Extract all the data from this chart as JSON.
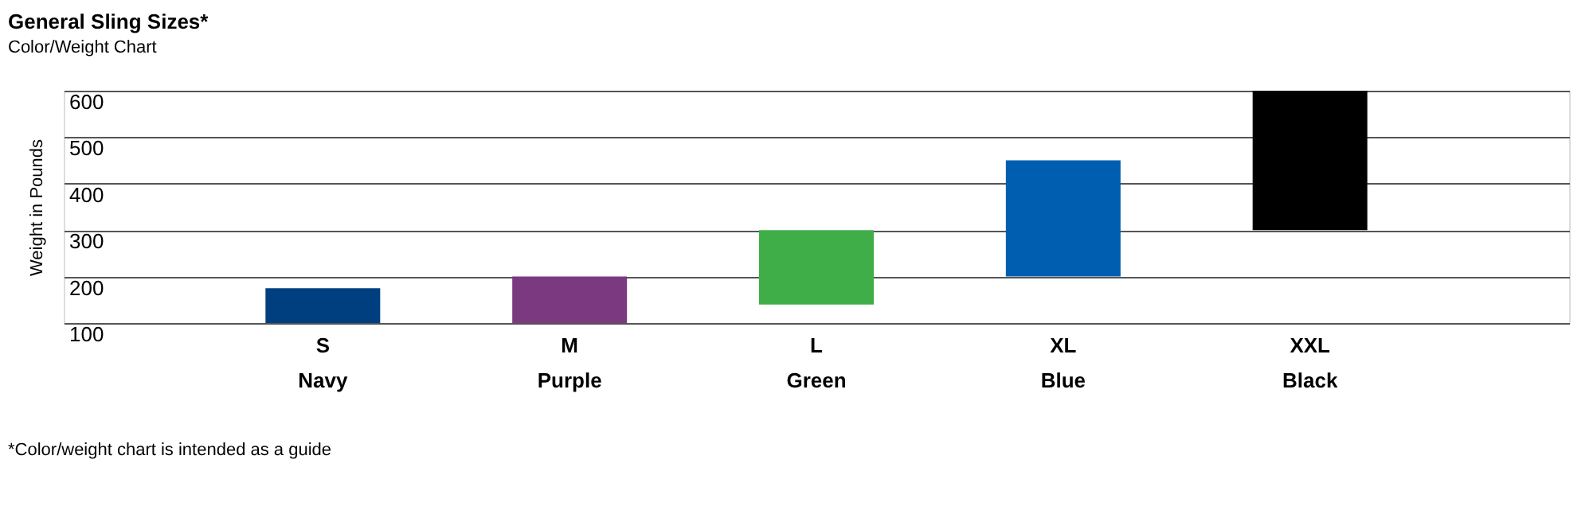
{
  "chart_data": {
    "type": "bar",
    "title": "General Sling Sizes*",
    "subtitle": "Color/Weight Chart",
    "ylabel": "Weight in Pounds",
    "categories": [
      "S\nNavy",
      "M\nPurple",
      "L\nGreen",
      "XL\nBlue",
      "XXL\nBlack"
    ],
    "base": [
      100,
      100,
      140,
      200,
      300
    ],
    "values": [
      75,
      100,
      160,
      250,
      300
    ],
    "colors": [
      "#003f7f",
      "#7b3a80",
      "#3fae49",
      "#005eb0",
      "#000000"
    ],
    "ylim": [
      100,
      600
    ],
    "yticks": [
      100,
      200,
      300,
      400,
      500,
      600
    ],
    "grid": "y",
    "annotations": [
      "*Color/weight chart is intended as a guide"
    ]
  }
}
